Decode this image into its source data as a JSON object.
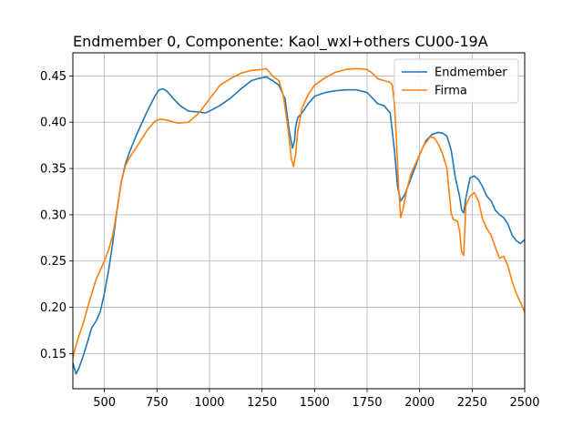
{
  "chart_data": {
    "type": "line",
    "title": "Endmember 0, Componente: Kaol_wxl+others CU00-19A",
    "xlabel": "",
    "ylabel": "",
    "xlim": [
      350,
      2500
    ],
    "ylim": [
      0.112,
      0.475
    ],
    "grid": true,
    "legend_position": "top-right",
    "x_ticks": [
      500,
      750,
      1000,
      1250,
      1500,
      1750,
      2000,
      2250,
      2500
    ],
    "y_ticks": [
      0.15,
      0.2,
      0.25,
      0.3,
      0.35,
      0.4,
      0.45
    ],
    "x_tick_labels": [
      "500",
      "750",
      "1000",
      "1250",
      "1500",
      "1750",
      "2000",
      "2250",
      "2500"
    ],
    "y_tick_labels": [
      "0.15",
      "0.20",
      "0.25",
      "0.30",
      "0.35",
      "0.40",
      "0.45"
    ],
    "series": [
      {
        "name": "Endmember",
        "color": "#1f77b4",
        "x": [
          350,
          365,
          380,
          400,
          420,
          440,
          460,
          480,
          500,
          520,
          540,
          560,
          580,
          600,
          620,
          650,
          700,
          740,
          760,
          780,
          800,
          830,
          860,
          900,
          950,
          980,
          1000,
          1050,
          1100,
          1150,
          1200,
          1230,
          1270,
          1300,
          1330,
          1360,
          1380,
          1395,
          1405,
          1410,
          1420,
          1440,
          1470,
          1500,
          1550,
          1600,
          1650,
          1700,
          1750,
          1780,
          1800,
          1830,
          1860,
          1880,
          1895,
          1910,
          1930,
          1960,
          2000,
          2030,
          2060,
          2090,
          2110,
          2130,
          2150,
          2170,
          2190,
          2200,
          2210,
          2220,
          2240,
          2260,
          2280,
          2300,
          2320,
          2340,
          2360,
          2380,
          2400,
          2420,
          2440,
          2460,
          2480,
          2500
        ],
        "y": [
          0.14,
          0.128,
          0.135,
          0.148,
          0.163,
          0.178,
          0.185,
          0.195,
          0.215,
          0.24,
          0.27,
          0.305,
          0.335,
          0.355,
          0.368,
          0.385,
          0.41,
          0.428,
          0.435,
          0.436,
          0.433,
          0.425,
          0.418,
          0.412,
          0.411,
          0.41,
          0.412,
          0.418,
          0.426,
          0.436,
          0.445,
          0.447,
          0.449,
          0.445,
          0.44,
          0.425,
          0.39,
          0.372,
          0.38,
          0.395,
          0.405,
          0.41,
          0.42,
          0.428,
          0.432,
          0.434,
          0.435,
          0.435,
          0.432,
          0.425,
          0.42,
          0.418,
          0.41,
          0.37,
          0.33,
          0.315,
          0.322,
          0.34,
          0.365,
          0.38,
          0.387,
          0.389,
          0.388,
          0.385,
          0.37,
          0.34,
          0.32,
          0.305,
          0.302,
          0.318,
          0.34,
          0.342,
          0.338,
          0.33,
          0.32,
          0.315,
          0.305,
          0.3,
          0.297,
          0.29,
          0.278,
          0.272,
          0.269,
          0.273
        ]
      },
      {
        "name": "Firma",
        "color": "#ff7f0e",
        "x": [
          350,
          360,
          380,
          400,
          420,
          440,
          460,
          480,
          500,
          520,
          540,
          560,
          580,
          600,
          620,
          650,
          700,
          740,
          760,
          780,
          800,
          850,
          900,
          950,
          1000,
          1050,
          1100,
          1150,
          1200,
          1250,
          1270,
          1300,
          1330,
          1350,
          1370,
          1390,
          1400,
          1410,
          1420,
          1440,
          1470,
          1500,
          1550,
          1600,
          1650,
          1700,
          1750,
          1780,
          1800,
          1830,
          1860,
          1870,
          1880,
          1890,
          1900,
          1910,
          1920,
          1940,
          1960,
          1990,
          2020,
          2050,
          2070,
          2090,
          2110,
          2130,
          2150,
          2160,
          2180,
          2190,
          2200,
          2210,
          2220,
          2240,
          2260,
          2280,
          2300,
          2320,
          2340,
          2360,
          2380,
          2400,
          2420,
          2440,
          2460,
          2480,
          2500
        ],
        "y": [
          0.145,
          0.155,
          0.17,
          0.183,
          0.2,
          0.215,
          0.23,
          0.24,
          0.25,
          0.262,
          0.278,
          0.305,
          0.335,
          0.353,
          0.362,
          0.372,
          0.39,
          0.401,
          0.403,
          0.403,
          0.402,
          0.399,
          0.4,
          0.41,
          0.425,
          0.44,
          0.447,
          0.453,
          0.456,
          0.457,
          0.458,
          0.45,
          0.445,
          0.43,
          0.4,
          0.36,
          0.352,
          0.365,
          0.39,
          0.415,
          0.43,
          0.44,
          0.448,
          0.454,
          0.457,
          0.458,
          0.457,
          0.452,
          0.447,
          0.445,
          0.443,
          0.44,
          0.42,
          0.38,
          0.33,
          0.297,
          0.305,
          0.328,
          0.345,
          0.36,
          0.375,
          0.384,
          0.383,
          0.376,
          0.365,
          0.35,
          0.302,
          0.295,
          0.293,
          0.283,
          0.26,
          0.256,
          0.31,
          0.32,
          0.324,
          0.315,
          0.295,
          0.285,
          0.278,
          0.265,
          0.253,
          0.255,
          0.245,
          0.228,
          0.215,
          0.205,
          0.195
        ]
      }
    ]
  }
}
